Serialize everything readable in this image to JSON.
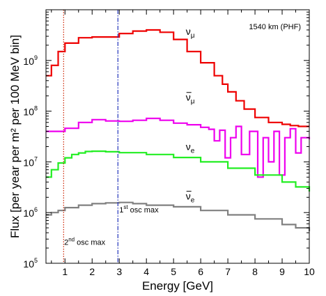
{
  "chart_data": {
    "type": "line",
    "annotation": "1540 km (PHF)",
    "xlabel": "Energy [GeV]",
    "ylabel": "Flux [per year per m² per 100 MeV bin]",
    "xlim": [
      0.3,
      10
    ],
    "ylim": [
      100000,
      10000000000
    ],
    "yscale": "log",
    "grid": false,
    "x_ticks": [
      {
        "value": 1,
        "label": "1"
      },
      {
        "value": 2,
        "label": "2"
      },
      {
        "value": 3,
        "label": "3"
      },
      {
        "value": 4,
        "label": "4"
      },
      {
        "value": 5,
        "label": "5"
      },
      {
        "value": 6,
        "label": "6"
      },
      {
        "value": 7,
        "label": "7"
      },
      {
        "value": 8,
        "label": "8"
      },
      {
        "value": 9,
        "label": "9"
      },
      {
        "value": 10,
        "label": "10"
      }
    ],
    "y_ticks": [
      {
        "value": 100000,
        "base": "10",
        "exp": "5"
      },
      {
        "value": 1000000,
        "base": "10",
        "exp": "6"
      },
      {
        "value": 10000000,
        "base": "10",
        "exp": "7"
      },
      {
        "value": 100000000,
        "base": "10",
        "exp": "8"
      },
      {
        "value": 1000000000,
        "base": "10",
        "exp": "9"
      }
    ],
    "vlines": [
      {
        "x": 0.95,
        "color": "#cc2200",
        "style": "dotted",
        "label": "2nd osc max",
        "main": "2",
        "sup": "nd",
        "rest": " osc max"
      },
      {
        "x": 2.95,
        "color": "#2233bb",
        "style": "dashdot",
        "label": "1st osc max",
        "main": "1",
        "sup": "st",
        "rest": " osc max"
      }
    ],
    "series": [
      {
        "name": "ν_μ",
        "label_main": "ν",
        "label_sub": "μ",
        "bar": false,
        "color": "#ee0000",
        "x": [
          0.3,
          0.5,
          0.75,
          1.0,
          1.5,
          2.0,
          2.5,
          3.0,
          3.5,
          4.0,
          4.5,
          5.0,
          5.5,
          6.0,
          6.5,
          6.8,
          7.0,
          7.3,
          7.6,
          8.0,
          8.5,
          9.0,
          9.3,
          9.6,
          10.0
        ],
        "y": [
          500000000,
          800000000,
          1500000000,
          2200000000,
          2800000000,
          2900000000,
          2900000000,
          3400000000,
          3800000000,
          4000000000,
          3600000000,
          2600000000,
          1500000000,
          900000000,
          500000000,
          340000000,
          240000000,
          160000000,
          110000000,
          75000000,
          60000000,
          55000000,
          52000000,
          50000000,
          50000000
        ]
      },
      {
        "name": "ν̄_μ",
        "label_main": "ν",
        "label_sub": "μ",
        "bar": true,
        "color": "#ee00ee",
        "x": [
          0.3,
          0.6,
          1.0,
          1.5,
          2.0,
          2.5,
          3.0,
          3.5,
          4.0,
          4.5,
          5.0,
          5.5,
          6.0,
          6.3,
          6.5,
          6.7,
          6.9,
          7.1,
          7.3,
          7.5,
          7.8,
          8.1,
          8.3,
          8.5,
          8.7,
          8.9,
          9.1,
          9.3,
          9.5,
          9.7,
          10.0
        ],
        "y": [
          40000000,
          40000000,
          46000000,
          60000000,
          68000000,
          64000000,
          63000000,
          66000000,
          72000000,
          66000000,
          58000000,
          54000000,
          48000000,
          44000000,
          26000000,
          42000000,
          12000000,
          30000000,
          50000000,
          14000000,
          40000000,
          5000000,
          30000000,
          10000000,
          40000000,
          5500000,
          30000000,
          45000000,
          15000000,
          30000000,
          28000000
        ]
      },
      {
        "name": "ν_e",
        "label_main": "ν",
        "label_sub": "e",
        "bar": false,
        "color": "#22ee22",
        "x": [
          0.3,
          0.5,
          0.75,
          1.0,
          1.25,
          1.5,
          1.75,
          2.0,
          2.5,
          3.0,
          4.0,
          5.0,
          6.0,
          7.0,
          8.0,
          9.0,
          9.5,
          10.0
        ],
        "y": [
          5000000,
          7000000,
          9500000,
          12000000,
          14000000,
          15000000,
          16000000,
          16200000,
          15800000,
          15200000,
          14000000,
          12200000,
          10000000,
          7500000,
          5500000,
          4000000,
          3200000,
          2600000
        ]
      },
      {
        "name": "ν̄_e",
        "label_main": "ν",
        "label_sub": "e",
        "bar": true,
        "color": "#808080",
        "x": [
          0.3,
          0.5,
          0.75,
          1.0,
          1.5,
          2.0,
          2.5,
          3.0,
          3.5,
          4.0,
          5.0,
          6.0,
          7.0,
          8.0,
          9.0,
          9.5,
          10.0
        ],
        "y": [
          900000,
          1000000,
          1100000,
          1250000,
          1400000,
          1500000,
          1550000,
          1580000,
          1500000,
          1400000,
          1300000,
          1100000,
          900000,
          750000,
          580000,
          500000,
          430000
        ]
      }
    ]
  }
}
